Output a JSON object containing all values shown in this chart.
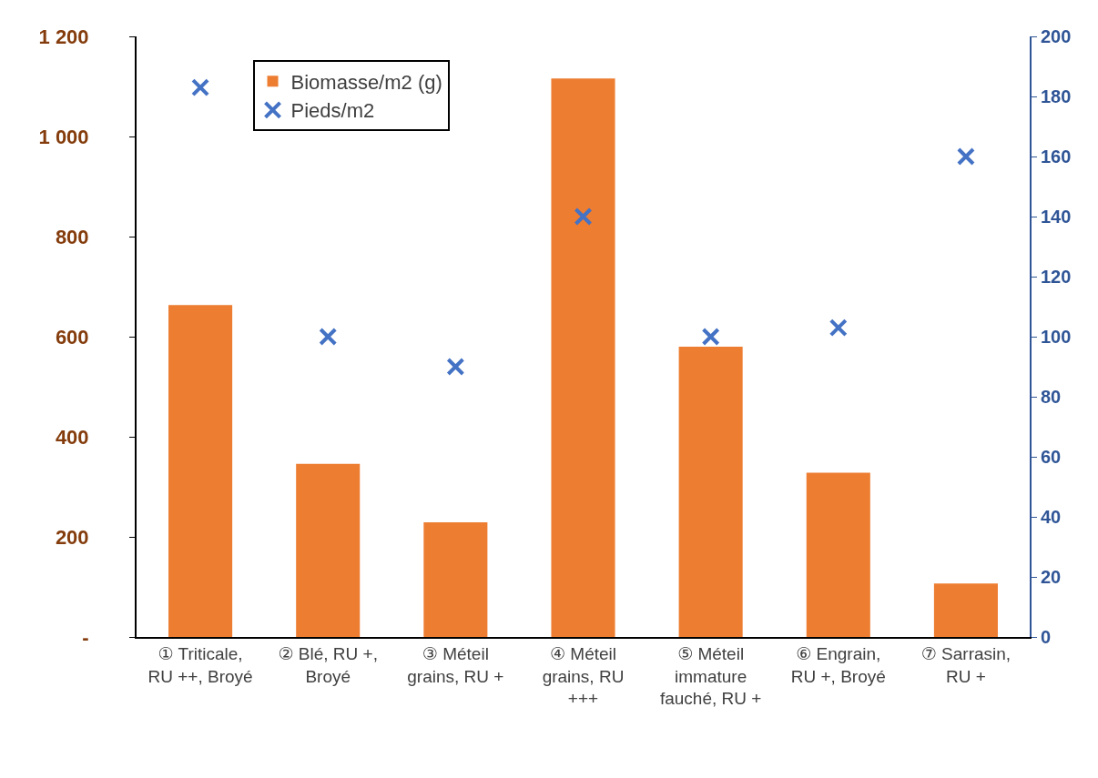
{
  "chart_data": {
    "type": "bar",
    "categories": [
      "① Triticale, RU ++, Broyé",
      "② Blé, RU +, Broyé",
      "③ Méteil grains, RU +",
      "④ Méteil grains, RU +++",
      "⑤ Méteil immature fauché, RU +",
      "⑥ Engrain, RU +, Broyé",
      "⑦ Sarrasin, RU +"
    ],
    "series": [
      {
        "name": "Biomasse/m2 (g)",
        "type": "bar",
        "color": "#ed7d31",
        "values": [
          663,
          346,
          229,
          1116,
          580,
          328,
          107
        ]
      },
      {
        "name": "Pieds/m2",
        "type": "scatter",
        "axis": "y2",
        "color": "#4472c4",
        "marker": "cross",
        "values": [
          183,
          100,
          90,
          140,
          100,
          103,
          160
        ]
      }
    ],
    "ylim": [
      0,
      1200
    ],
    "yticks": [
      {
        "value": 0,
        "label": "-"
      },
      200,
      400,
      600,
      800,
      {
        "value": 1000,
        "label": "1 000"
      },
      {
        "value": 1200,
        "label": "1 200"
      }
    ],
    "y2lim": [
      0,
      200
    ],
    "y2ticks": [
      0,
      20,
      40,
      60,
      80,
      100,
      120,
      140,
      160,
      180,
      200
    ],
    "grid": false,
    "legend": "top left"
  }
}
